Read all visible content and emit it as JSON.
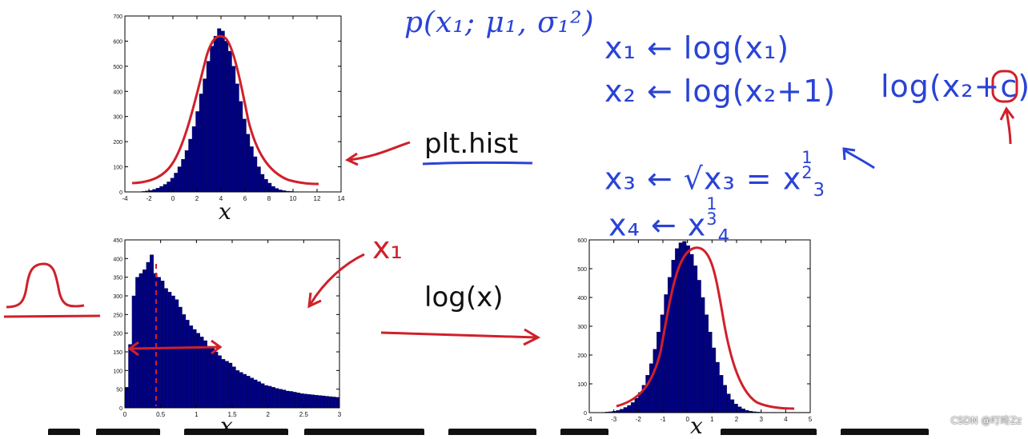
{
  "formulas": {
    "p_expr": "p(x₁; μ₁, σ₁²)",
    "t1_lhs": "x₁",
    "t1_rhs": "log(x₁)",
    "t2_lhs": "x₂",
    "t2_rhs": "log(x₂+1)",
    "t3_lhs": "x₃",
    "t3_rhs": "√x₃ = x",
    "t3_exp_top": "1",
    "t3_exp_bot": "2",
    "t3_sub": "3",
    "t4_lhs": "x₄",
    "t4_rhs": "x",
    "t4_exp_top": "1",
    "t4_exp_bot": "3",
    "t4_sub": "4",
    "log_c_prefix": "log(x₂+",
    "log_c_c": "c",
    "log_c_suffix": ")",
    "arrow": "←"
  },
  "labels": {
    "plt_hist": "plt.hist",
    "log_x": "log(x)",
    "x1_annotation": "x₁",
    "watermark": "CSDN @叮咚Zz"
  },
  "colors": {
    "bar_fill": "#000080",
    "ink_blue": "#2a43d6",
    "ink_red": "#d0202a",
    "frame": "#000000"
  },
  "chart_data": [
    {
      "type": "bar",
      "id": "top-left",
      "xlabel": "x",
      "xlim": [
        -4,
        14
      ],
      "ylim": [
        0,
        700
      ],
      "xticks": [
        -4,
        -2,
        0,
        2,
        4,
        6,
        8,
        10,
        12,
        14
      ],
      "yticks": [
        0,
        100,
        200,
        300,
        400,
        500,
        600,
        700
      ],
      "bin_start": -2.6,
      "bin_width": 0.3,
      "values": [
        2,
        4,
        6,
        10,
        15,
        22,
        30,
        40,
        55,
        75,
        100,
        130,
        165,
        210,
        260,
        320,
        390,
        450,
        520,
        580,
        620,
        650,
        640,
        600,
        560,
        500,
        430,
        360,
        290,
        230,
        180,
        140,
        100,
        70,
        50,
        35,
        22,
        14,
        8,
        5,
        3,
        2,
        1,
        1,
        1
      ],
      "grid": false
    },
    {
      "type": "bar",
      "id": "bottom-left",
      "xlabel": "x",
      "xlim": [
        0,
        3
      ],
      "ylim": [
        0,
        450
      ],
      "xticks": [
        0,
        0.5,
        1,
        1.5,
        2,
        2.5,
        3
      ],
      "yticks": [
        0,
        50,
        100,
        150,
        200,
        250,
        300,
        350,
        400,
        450
      ],
      "bin_start": 0,
      "bin_width": 0.05,
      "values": [
        55,
        170,
        300,
        350,
        360,
        370,
        390,
        410,
        360,
        350,
        340,
        320,
        310,
        300,
        290,
        270,
        250,
        235,
        220,
        210,
        200,
        190,
        180,
        165,
        160,
        150,
        140,
        130,
        125,
        120,
        110,
        100,
        95,
        90,
        85,
        80,
        75,
        70,
        65,
        60,
        58,
        55,
        52,
        50,
        48,
        45,
        44,
        42,
        40,
        38,
        37,
        36,
        35,
        34,
        33,
        32,
        31,
        30,
        29,
        28
      ],
      "grid": false
    },
    {
      "type": "bar",
      "id": "bottom-right",
      "xlabel": "x",
      "xlim": [
        -4,
        5
      ],
      "ylim": [
        0,
        600
      ],
      "xticks": [
        -4,
        -3,
        -2,
        -1,
        0,
        1,
        2,
        3,
        4,
        5
      ],
      "yticks": [
        0,
        100,
        200,
        300,
        400,
        500,
        600
      ],
      "bin_start": -3.5,
      "bin_width": 0.15,
      "values": [
        1,
        2,
        3,
        5,
        8,
        12,
        18,
        25,
        35,
        50,
        70,
        95,
        130,
        170,
        220,
        280,
        340,
        410,
        470,
        530,
        570,
        590,
        595,
        580,
        550,
        510,
        460,
        400,
        340,
        280,
        225,
        175,
        130,
        95,
        65,
        45,
        30,
        20,
        13,
        8,
        5,
        3,
        2,
        1,
        1,
        1,
        1,
        1,
        1,
        1,
        1,
        1,
        1,
        1,
        1,
        1,
        1,
        1,
        1,
        1
      ],
      "grid": false
    }
  ]
}
